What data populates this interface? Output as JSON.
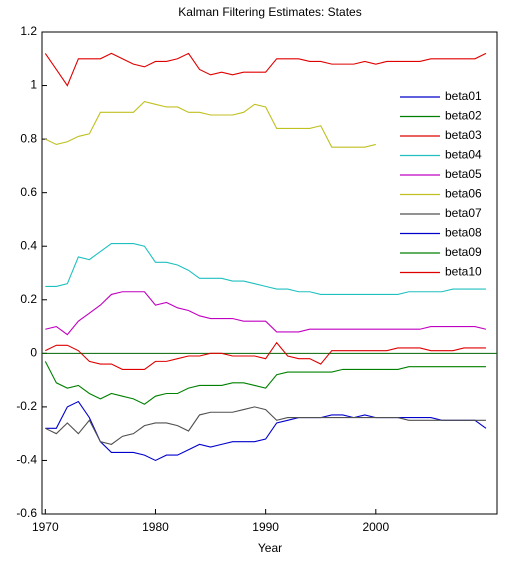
{
  "chart_data": {
    "type": "line",
    "title": "Kalman Filtering Estimates: States",
    "x_label": "Year",
    "x": [
      1970,
      1971,
      1972,
      1973,
      1974,
      1975,
      1976,
      1977,
      1978,
      1979,
      1980,
      1981,
      1982,
      1983,
      1984,
      1985,
      1986,
      1987,
      1988,
      1989,
      1990,
      1991,
      1992,
      1993,
      1994,
      1995,
      1996,
      1997,
      1998,
      1999,
      2000,
      2001,
      2002,
      2003,
      2004,
      2005,
      2006,
      2007,
      2008,
      2009,
      2010
    ],
    "xlim": [
      1969.7,
      2011
    ],
    "xticks": [
      1970,
      1980,
      1990,
      2000
    ],
    "ylim": [
      -0.6,
      1.2
    ],
    "yticks": [
      -0.6,
      -0.4,
      -0.2,
      0,
      0.2,
      0.4,
      0.6,
      0.8,
      1,
      1.2
    ],
    "hline": 0,
    "hline_color": "#006400",
    "legend": "upper right",
    "series": [
      {
        "name": "beta01",
        "color": "#0000cc",
        "values": [
          -0.28,
          -0.28,
          -0.2,
          -0.18,
          -0.24,
          -0.33,
          -0.37,
          -0.37,
          -0.37,
          -0.38,
          -0.4,
          -0.38,
          -0.38,
          -0.36,
          -0.34,
          -0.35,
          -0.34,
          -0.33,
          -0.33,
          -0.33,
          -0.32,
          -0.26,
          -0.25,
          -0.24,
          -0.24,
          -0.24,
          -0.23,
          -0.23,
          -0.24,
          -0.23,
          -0.24,
          -0.24,
          -0.24,
          -0.24,
          -0.24,
          -0.24,
          -0.25,
          -0.25,
          -0.25,
          -0.25,
          -0.28
        ]
      },
      {
        "name": "beta02",
        "color": "#008000",
        "values": [
          -0.03,
          -0.11,
          -0.13,
          -0.12,
          -0.15,
          -0.17,
          -0.15,
          -0.16,
          -0.17,
          -0.19,
          -0.16,
          -0.15,
          -0.15,
          -0.13,
          -0.12,
          -0.12,
          -0.12,
          -0.11,
          -0.11,
          -0.12,
          -0.13,
          -0.08,
          -0.07,
          -0.07,
          -0.07,
          -0.07,
          -0.07,
          -0.06,
          -0.06,
          -0.06,
          -0.06,
          -0.06,
          -0.06,
          -0.05,
          -0.05,
          -0.05,
          -0.05,
          -0.05,
          -0.05,
          -0.05,
          -0.05
        ]
      },
      {
        "name": "beta03",
        "color": "#e00000",
        "values": [
          1.12,
          1.06,
          1.0,
          1.1,
          1.1,
          1.1,
          1.12,
          1.1,
          1.08,
          1.07,
          1.09,
          1.09,
          1.1,
          1.12,
          1.06,
          1.04,
          1.05,
          1.04,
          1.05,
          1.05,
          1.05,
          1.1,
          1.1,
          1.1,
          1.09,
          1.09,
          1.08,
          1.08,
          1.08,
          1.09,
          1.08,
          1.09,
          1.09,
          1.09,
          1.09,
          1.1,
          1.1,
          1.1,
          1.1,
          1.1,
          1.12
        ]
      },
      {
        "name": "beta04",
        "color": "#20c0c0",
        "values": [
          0.25,
          0.25,
          0.26,
          0.36,
          0.35,
          0.38,
          0.41,
          0.41,
          0.41,
          0.4,
          0.34,
          0.34,
          0.33,
          0.31,
          0.28,
          0.28,
          0.28,
          0.27,
          0.27,
          0.26,
          0.25,
          0.24,
          0.24,
          0.23,
          0.23,
          0.22,
          0.22,
          0.22,
          0.22,
          0.22,
          0.22,
          0.22,
          0.22,
          0.23,
          0.23,
          0.23,
          0.23,
          0.24,
          0.24,
          0.24,
          0.24
        ]
      },
      {
        "name": "beta05",
        "color": "#c000c0",
        "values": [
          0.09,
          0.1,
          0.07,
          0.12,
          0.15,
          0.18,
          0.22,
          0.23,
          0.23,
          0.23,
          0.18,
          0.19,
          0.17,
          0.16,
          0.14,
          0.13,
          0.13,
          0.13,
          0.12,
          0.12,
          0.12,
          0.08,
          0.08,
          0.08,
          0.09,
          0.09,
          0.09,
          0.09,
          0.09,
          0.09,
          0.09,
          0.09,
          0.09,
          0.09,
          0.09,
          0.1,
          0.1,
          0.1,
          0.1,
          0.1,
          0.09
        ]
      },
      {
        "name": "beta06",
        "color": "#c0c020",
        "values": [
          0.8,
          0.78,
          0.79,
          0.81,
          0.82,
          0.9,
          0.9,
          0.9,
          0.9,
          0.94,
          0.93,
          0.92,
          0.92,
          0.9,
          0.9,
          0.89,
          0.89,
          0.89,
          0.9,
          0.93,
          0.92,
          0.84,
          0.84,
          0.84,
          0.84,
          0.85,
          0.77,
          0.77,
          0.77,
          0.77,
          0.78,
          null,
          null,
          null,
          null,
          null,
          null,
          null,
          null,
          null,
          null
        ]
      },
      {
        "name": "beta07",
        "color": "#505050",
        "values": [
          -0.28,
          -0.3,
          -0.26,
          -0.3,
          -0.25,
          -0.33,
          -0.34,
          -0.31,
          -0.3,
          -0.27,
          -0.26,
          -0.26,
          -0.27,
          -0.29,
          -0.23,
          -0.22,
          -0.22,
          -0.22,
          -0.21,
          -0.2,
          -0.21,
          -0.25,
          -0.24,
          -0.24,
          -0.24,
          -0.24,
          -0.24,
          -0.24,
          -0.24,
          -0.24,
          -0.24,
          -0.24,
          -0.24,
          -0.25,
          -0.25,
          -0.25,
          -0.25,
          -0.25,
          -0.25,
          -0.25,
          -0.25
        ]
      },
      {
        "name": "beta08",
        "color": "#0000cc",
        "values": [
          null,
          null,
          null,
          null,
          null,
          null,
          null,
          null,
          null,
          null,
          null,
          null,
          null,
          null,
          null,
          null,
          null,
          null,
          null,
          null,
          null,
          null,
          null,
          null,
          null,
          null,
          null,
          null,
          null,
          null,
          null,
          null,
          null,
          null,
          null,
          null,
          null,
          null,
          null,
          null,
          null
        ]
      },
      {
        "name": "beta09",
        "color": "#008000",
        "values": [
          null,
          null,
          null,
          null,
          null,
          null,
          null,
          null,
          null,
          null,
          null,
          null,
          null,
          null,
          null,
          null,
          null,
          null,
          null,
          null,
          null,
          null,
          null,
          null,
          null,
          null,
          null,
          null,
          null,
          null,
          null,
          null,
          null,
          null,
          null,
          null,
          null,
          null,
          null,
          null,
          null
        ]
      },
      {
        "name": "beta10",
        "color": "#e00000",
        "values": [
          0.01,
          0.03,
          0.03,
          0.01,
          -0.03,
          -0.04,
          -0.04,
          -0.06,
          -0.06,
          -0.06,
          -0.03,
          -0.03,
          -0.02,
          -0.01,
          -0.01,
          0.0,
          0.0,
          -0.01,
          -0.01,
          -0.01,
          -0.02,
          0.04,
          -0.01,
          -0.02,
          -0.02,
          -0.04,
          0.01,
          0.01,
          0.01,
          0.01,
          0.01,
          0.01,
          0.02,
          0.02,
          0.02,
          0.01,
          0.01,
          0.01,
          0.02,
          0.02,
          0.02
        ]
      }
    ]
  }
}
